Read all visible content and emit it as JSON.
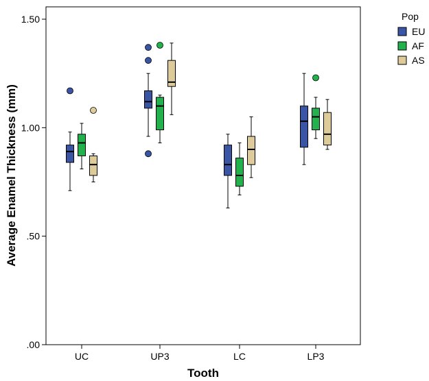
{
  "chart_data": {
    "type": "box",
    "xlabel": "Tooth",
    "ylabel": "Average Enamel Thickness (mm)",
    "ylim": [
      0.0,
      1.55
    ],
    "yticks": [
      ".00",
      ".50",
      "1.00",
      "1.50"
    ],
    "ytick_values": [
      0.0,
      0.5,
      1.0,
      1.5
    ],
    "categories": [
      "UC",
      "UP3",
      "LC",
      "LP3"
    ],
    "legend": {
      "title": "Pop",
      "placement": "right-top"
    },
    "series": [
      {
        "name": "EU",
        "color": "#3a55a4",
        "boxes": [
          {
            "category": "UC",
            "min": 0.71,
            "q1": 0.84,
            "median": 0.89,
            "q3": 0.92,
            "max": 0.98,
            "outliers": [
              1.17
            ]
          },
          {
            "category": "UP3",
            "min": 0.96,
            "q1": 1.09,
            "median": 1.12,
            "q3": 1.17,
            "max": 1.25,
            "outliers": [
              0.88,
              1.31,
              1.37
            ]
          },
          {
            "category": "LC",
            "min": 0.63,
            "q1": 0.78,
            "median": 0.83,
            "q3": 0.92,
            "max": 0.97,
            "outliers": []
          },
          {
            "category": "LP3",
            "min": 0.83,
            "q1": 0.91,
            "median": 1.03,
            "q3": 1.1,
            "max": 1.25,
            "outliers": []
          }
        ]
      },
      {
        "name": "AF",
        "color": "#22b14c",
        "boxes": [
          {
            "category": "UC",
            "min": 0.81,
            "q1": 0.87,
            "median": 0.93,
            "q3": 0.97,
            "max": 1.02,
            "outliers": []
          },
          {
            "category": "UP3",
            "min": 0.93,
            "q1": 0.99,
            "median": 1.1,
            "q3": 1.14,
            "max": 1.15,
            "outliers": [
              1.38
            ]
          },
          {
            "category": "LC",
            "min": 0.69,
            "q1": 0.73,
            "median": 0.78,
            "q3": 0.86,
            "max": 0.93,
            "outliers": []
          },
          {
            "category": "LP3",
            "min": 0.95,
            "q1": 0.99,
            "median": 1.05,
            "q3": 1.09,
            "max": 1.14,
            "outliers": [
              1.23
            ]
          }
        ]
      },
      {
        "name": "AS",
        "color": "#ddcc99",
        "boxes": [
          {
            "category": "UC",
            "min": 0.75,
            "q1": 0.78,
            "median": 0.83,
            "q3": 0.87,
            "max": 0.88,
            "outliers": [
              1.08
            ]
          },
          {
            "category": "UP3",
            "min": 1.06,
            "q1": 1.19,
            "median": 1.21,
            "q3": 1.31,
            "max": 1.39,
            "outliers": []
          },
          {
            "category": "LC",
            "min": 0.77,
            "q1": 0.83,
            "median": 0.9,
            "q3": 0.96,
            "max": 1.05,
            "outliers": []
          },
          {
            "category": "LP3",
            "min": 0.9,
            "q1": 0.92,
            "median": 0.97,
            "q3": 1.07,
            "max": 1.13,
            "outliers": []
          }
        ]
      }
    ]
  }
}
